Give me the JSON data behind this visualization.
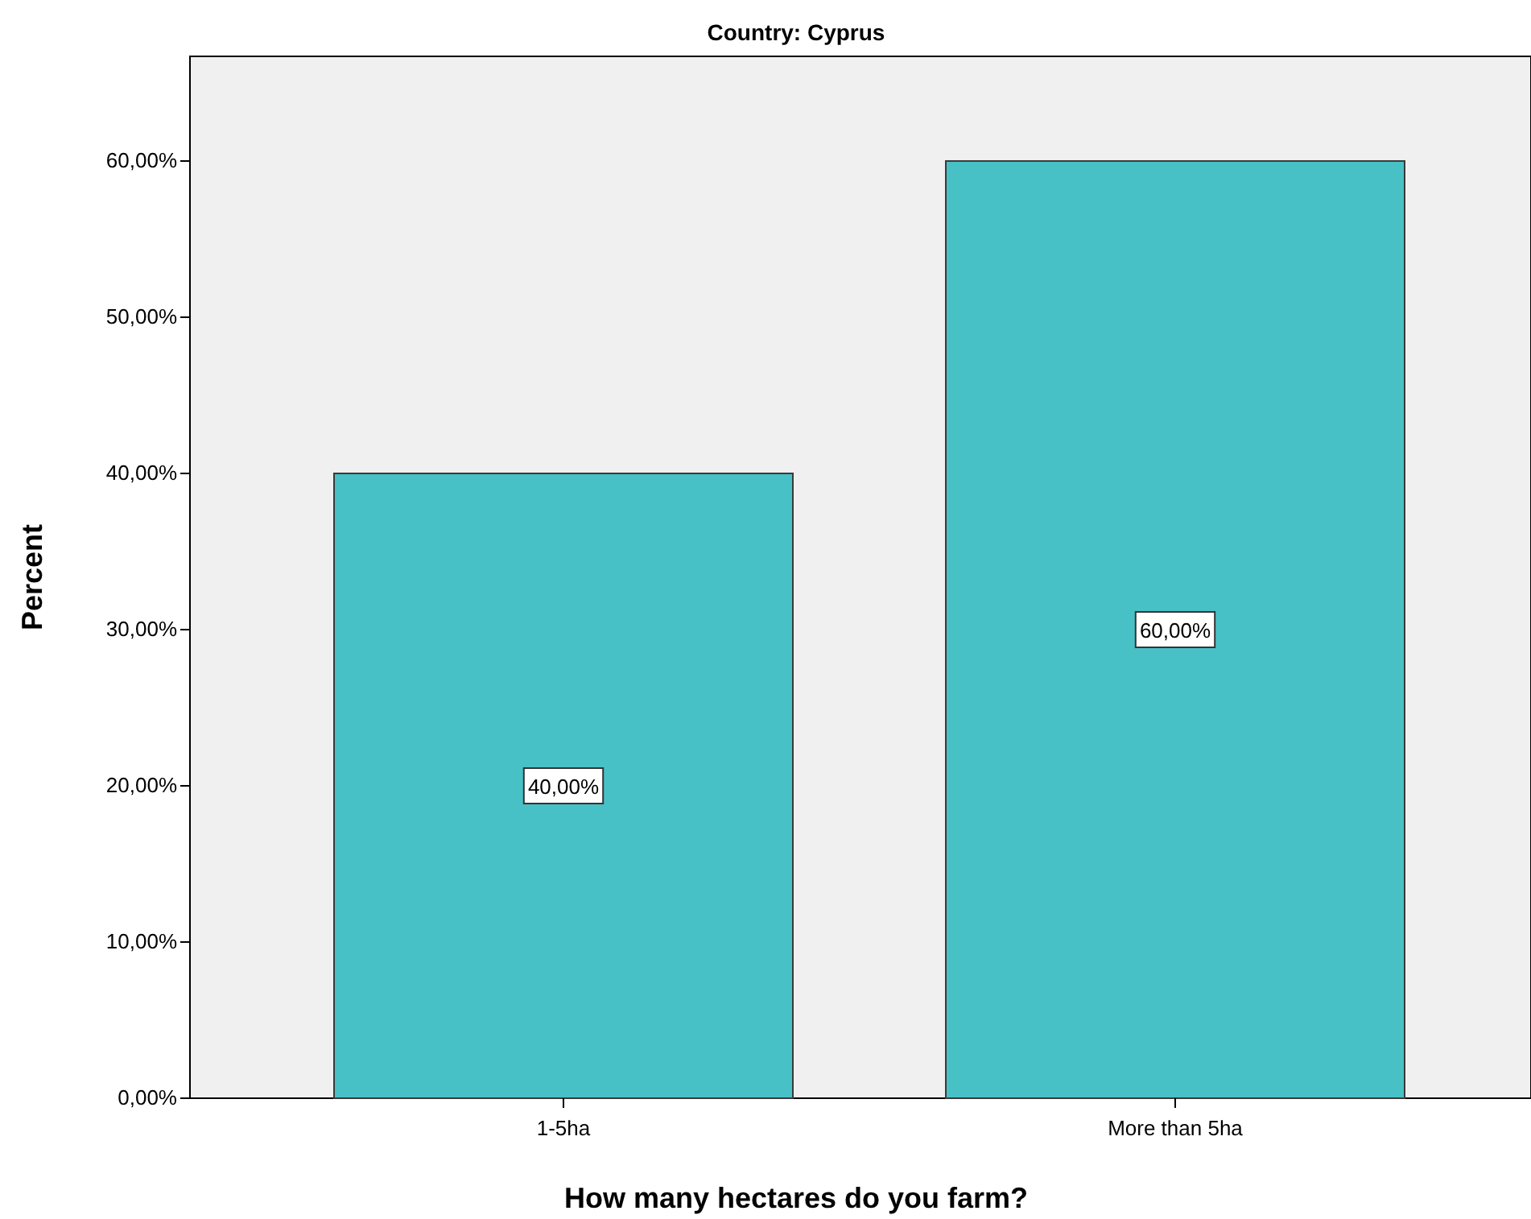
{
  "chart_data": {
    "type": "bar",
    "title": "Country: Cyprus",
    "xlabel": "How many hectares do you farm?",
    "ylabel": "Percent",
    "categories": [
      "1-5ha",
      "More than 5ha"
    ],
    "values": [
      40,
      60
    ],
    "color": "#48c1c6",
    "value_labels": [
      "40,00%",
      "60,00%"
    ],
    "ylim": [
      0,
      66.7
    ],
    "yticks": [
      {
        "value": 0,
        "label": "0,00%"
      },
      {
        "value": 10,
        "label": "10,00%"
      },
      {
        "value": 20,
        "label": "20,00%"
      },
      {
        "value": 30,
        "label": "30,00%"
      },
      {
        "value": 40,
        "label": "40,00%"
      },
      {
        "value": 50,
        "label": "50,00%"
      },
      {
        "value": 60,
        "label": "60,00%"
      }
    ]
  }
}
